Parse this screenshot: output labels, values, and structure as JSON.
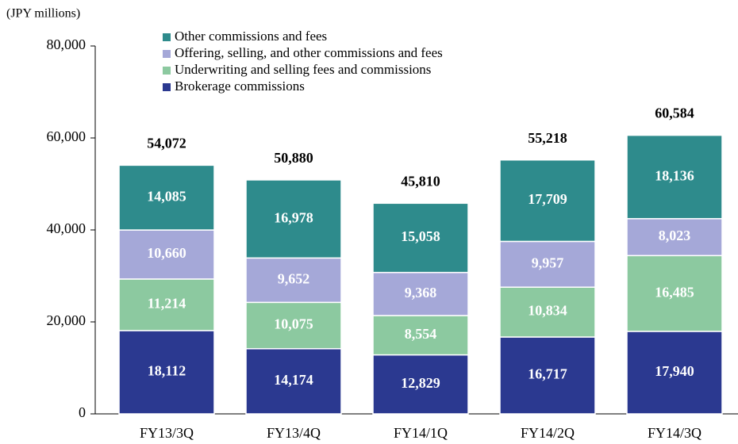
{
  "chart_data": {
    "type": "stacked-bar",
    "unit_label": "(JPY millions)",
    "categories": [
      "FY13/3Q",
      "FY13/4Q",
      "FY14/1Q",
      "FY14/2Q",
      "FY14/3Q"
    ],
    "series": [
      {
        "name": "Brokerage commissions",
        "color": "#2b3990",
        "values": [
          18112,
          14174,
          12829,
          16717,
          17940
        ],
        "value_labels": [
          "18,112",
          "14,174",
          "12,829",
          "16,717",
          "17,940"
        ]
      },
      {
        "name": "Underwriting and selling fees and commissions",
        "color": "#8cc9a0",
        "values": [
          11214,
          10075,
          8554,
          10834,
          16485
        ],
        "value_labels": [
          "11,214",
          "10,075",
          "8,554",
          "10,834",
          "16,485"
        ]
      },
      {
        "name": "Offering, selling, and other commissions and fees",
        "color": "#a5a8d8",
        "values": [
          10660,
          9652,
          9368,
          9957,
          8023
        ],
        "value_labels": [
          "10,660",
          "9,652",
          "9,368",
          "9,957",
          "8,023"
        ]
      },
      {
        "name": "Other commissions and fees",
        "color": "#2e8b8c",
        "values": [
          14085,
          16978,
          15058,
          17709,
          18136
        ],
        "value_labels": [
          "14,085",
          "16,978",
          "15,058",
          "17,709",
          "18,136"
        ]
      }
    ],
    "totals": {
      "values": [
        54072,
        50880,
        45810,
        55218,
        60584
      ],
      "value_labels": [
        "54,072",
        "50,880",
        "45,810",
        "55,218",
        "60,584"
      ]
    },
    "ylim": [
      0,
      80000
    ],
    "yticks": [
      0,
      {
        "value": 20000,
        "label": "20,000"
      },
      {
        "value": 40000,
        "label": "40,000"
      },
      {
        "value": 60000,
        "label": "60,000"
      },
      {
        "value": 80000,
        "label": "80,000"
      }
    ],
    "legend": "top-left"
  }
}
